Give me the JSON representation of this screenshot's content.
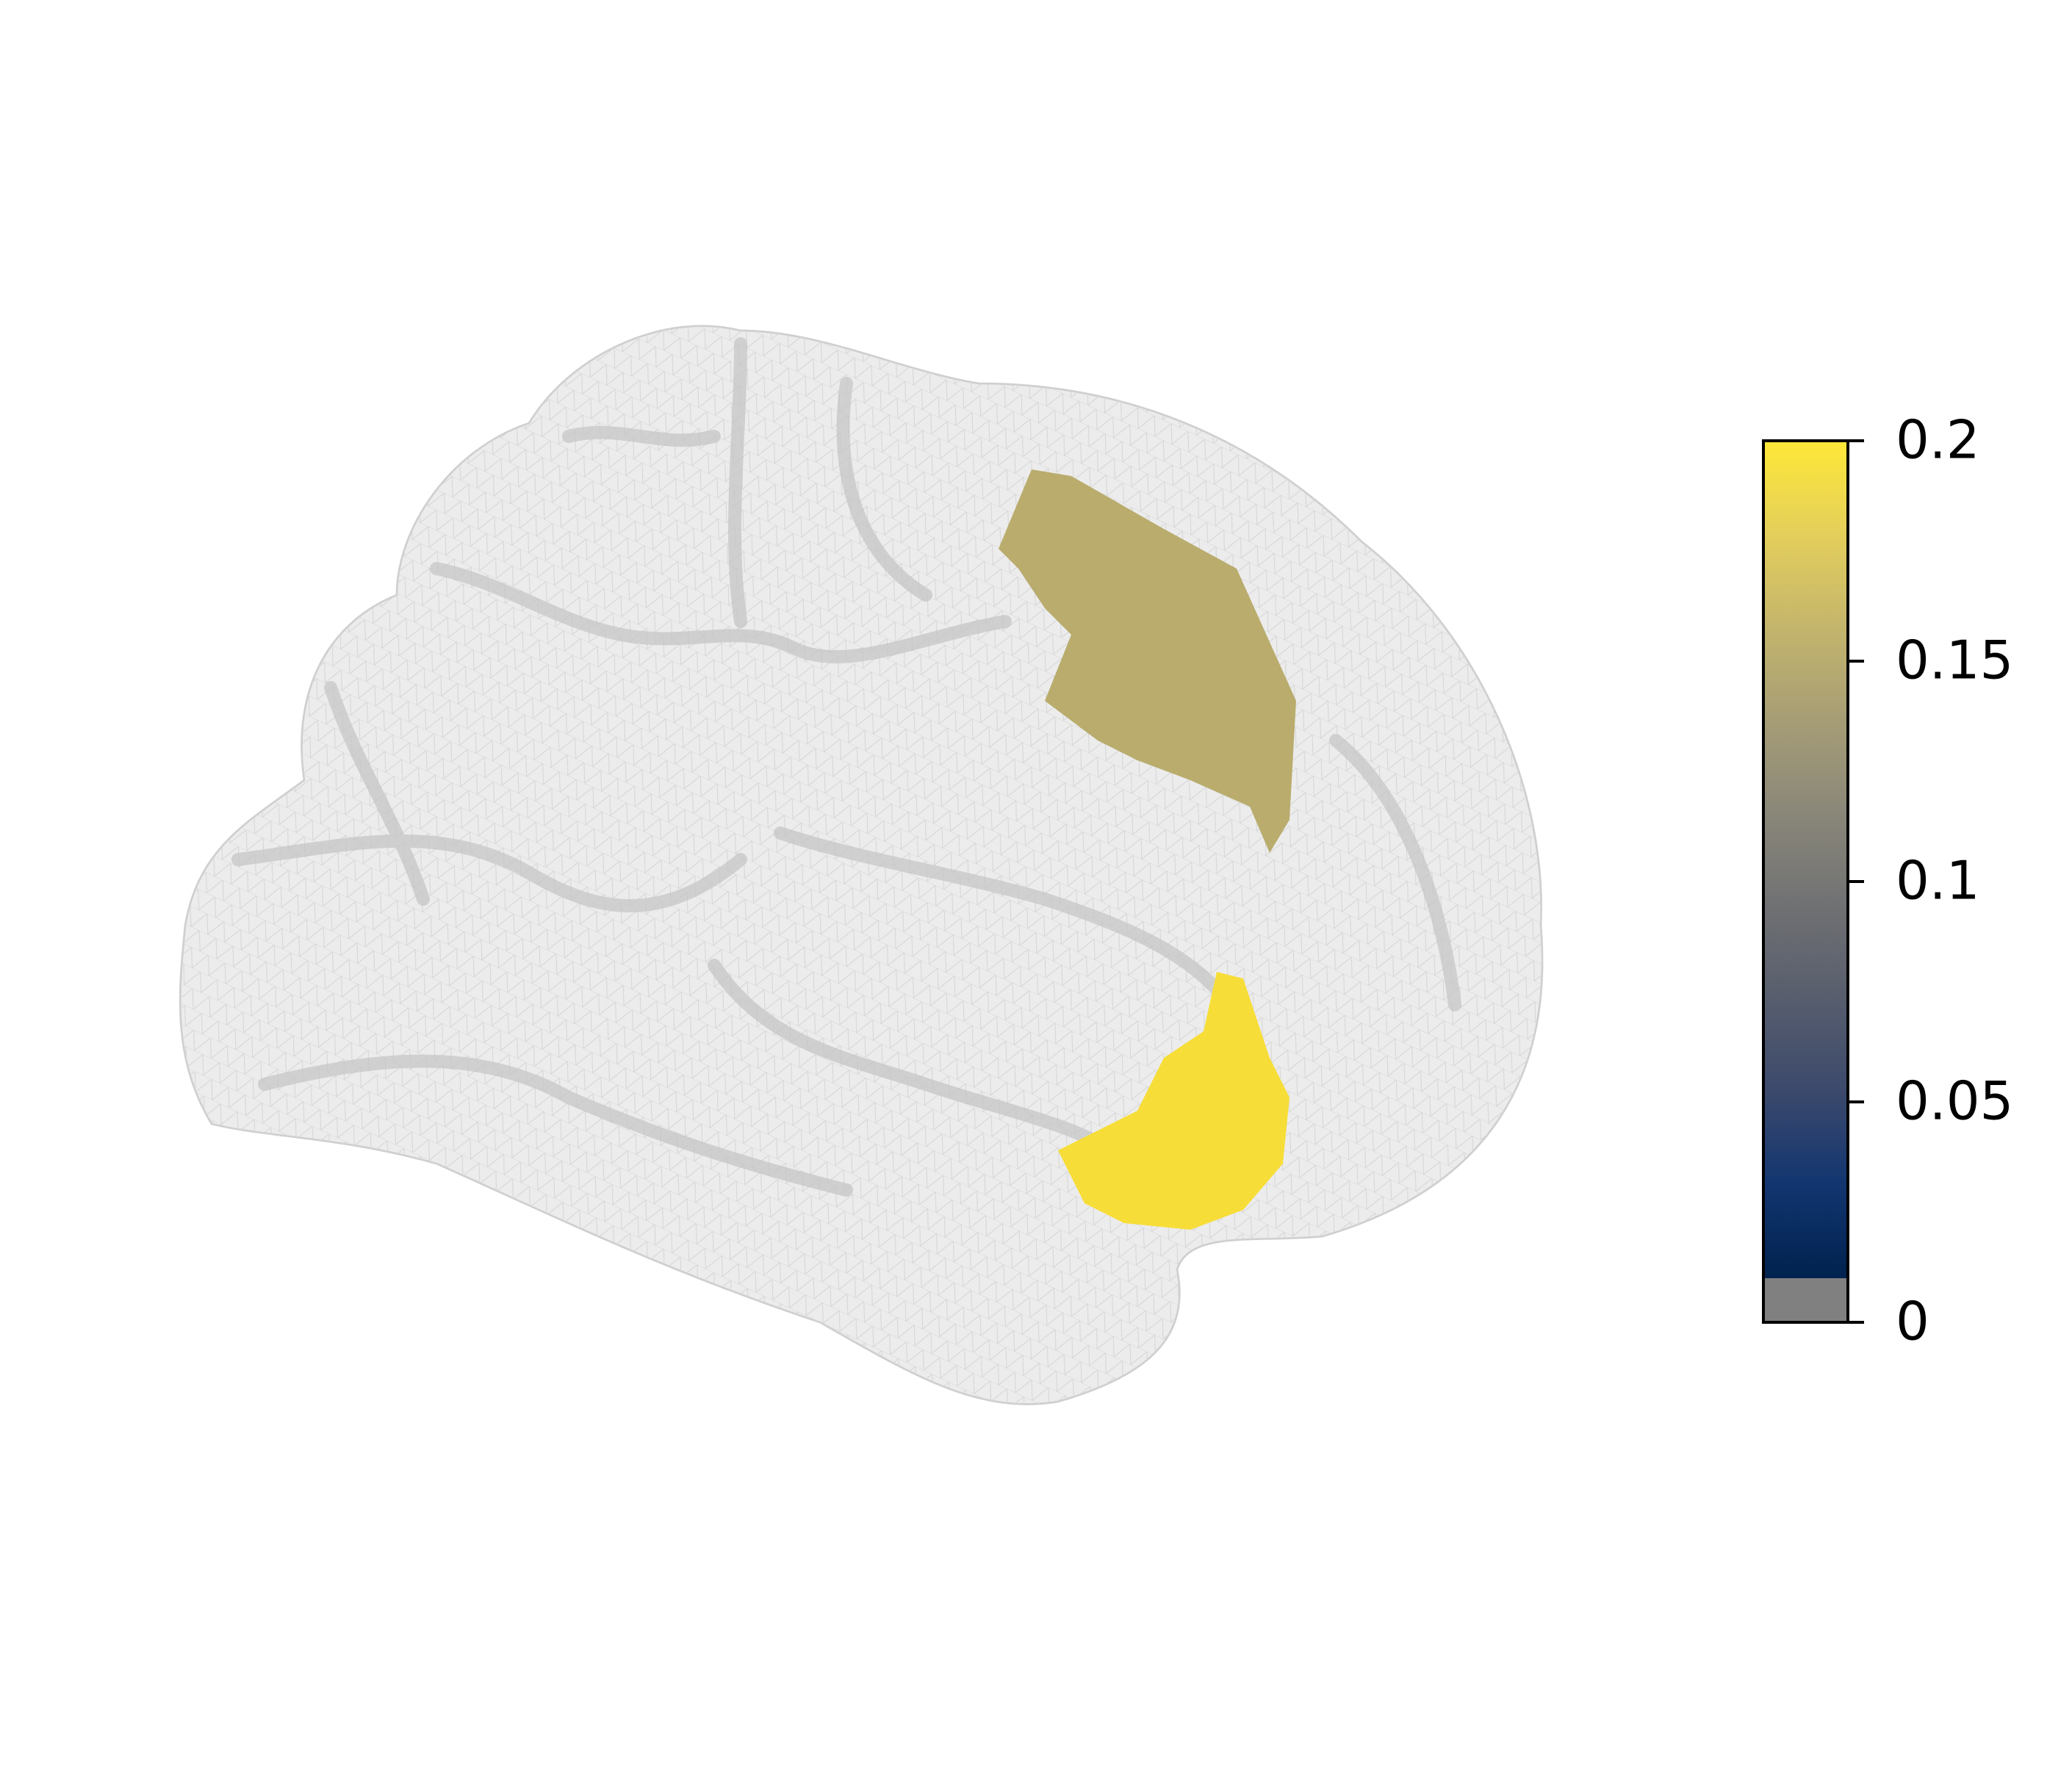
{
  "chart_data": {
    "type": "brain",
    "values": [
      0.15,
      0.2
    ],
    "colors": [
      "#b9ac6d",
      "#f7dd37"
    ],
    "colorbar": {
      "lim": [
        0,
        0.2
      ],
      "ticks": [
        0,
        0.05,
        0.1,
        0.15,
        0.2
      ],
      "colormap": [
        "#00224e",
        "#123570",
        "#3b496c",
        "#575d6d",
        "#707173",
        "#8a8779",
        "#a69d75",
        "#c4b56c",
        "#e4cf5b",
        "#fee838"
      ],
      "masked_below": 0.01,
      "masked_color": "#808080"
    }
  }
}
